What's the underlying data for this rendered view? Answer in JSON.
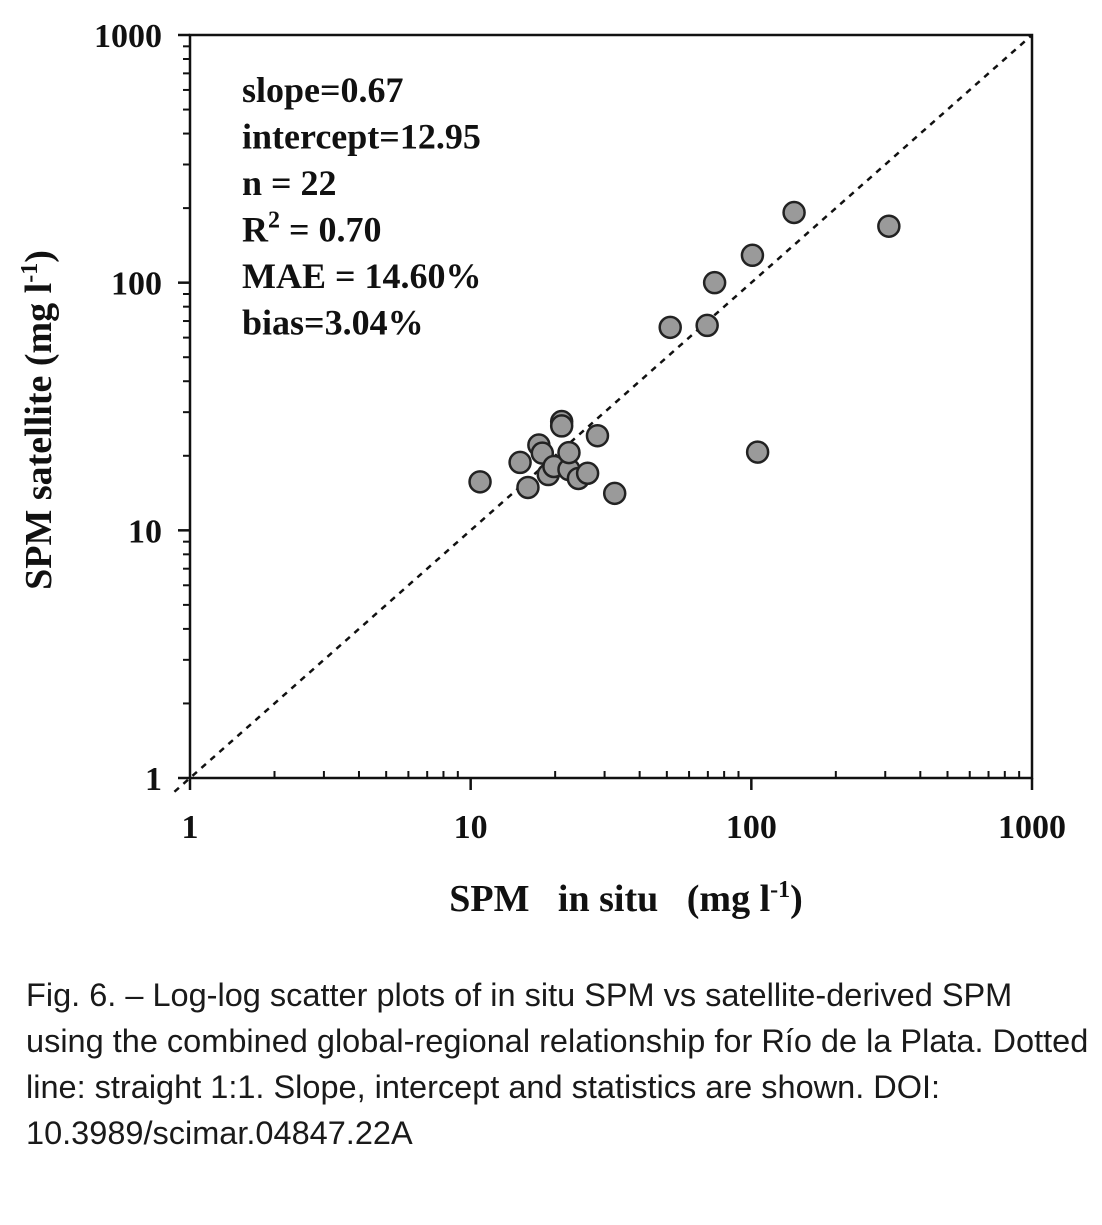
{
  "chart_data": {
    "type": "scatter",
    "xscale": "log",
    "yscale": "log",
    "xlim": [
      1,
      1000
    ],
    "ylim": [
      1,
      1000
    ],
    "x_ticks": [
      "1",
      "10",
      "100",
      "1000"
    ],
    "y_ticks": [
      "1",
      "10",
      "100",
      "1000"
    ],
    "xlabel": {
      "main": "SPM   in situ   (mg l",
      "sup": "-1",
      "end": ")"
    },
    "ylabel": {
      "main": "SPM satellite (mg l",
      "sup": "-1",
      "end": ")"
    },
    "reference_line": "1:1",
    "marker_color": "#9a9a9a",
    "stats": [
      {
        "label": "slope",
        "eq": "=",
        "value": "0.67"
      },
      {
        "label": "intercept",
        "eq": "=",
        "value": "12.95"
      },
      {
        "label": "n",
        "eq": " = ",
        "value": "22"
      },
      {
        "label": "R",
        "sup": "2",
        "eq": " = ",
        "value": "0.70"
      },
      {
        "label": "MAE",
        "eq": " = ",
        "value": "14.60%"
      },
      {
        "label": "bias",
        "eq": "=",
        "value": "3.04%"
      }
    ],
    "points": [
      {
        "x": 10.8,
        "y": 15.7
      },
      {
        "x": 15.0,
        "y": 18.8
      },
      {
        "x": 16.0,
        "y": 14.9
      },
      {
        "x": 17.5,
        "y": 22.1
      },
      {
        "x": 18.0,
        "y": 20.5
      },
      {
        "x": 18.9,
        "y": 16.8
      },
      {
        "x": 19.8,
        "y": 18.1
      },
      {
        "x": 21.1,
        "y": 27.5
      },
      {
        "x": 21.1,
        "y": 26.4
      },
      {
        "x": 22.4,
        "y": 17.6
      },
      {
        "x": 22.4,
        "y": 20.6
      },
      {
        "x": 24.2,
        "y": 16.2
      },
      {
        "x": 26.1,
        "y": 17.0
      },
      {
        "x": 28.3,
        "y": 24.1
      },
      {
        "x": 32.6,
        "y": 14.1
      },
      {
        "x": 51.4,
        "y": 66.0
      },
      {
        "x": 69.6,
        "y": 67.2
      },
      {
        "x": 74.0,
        "y": 100.0
      },
      {
        "x": 100.9,
        "y": 129.0
      },
      {
        "x": 105.3,
        "y": 20.7
      },
      {
        "x": 142.0,
        "y": 192.0
      },
      {
        "x": 309.0,
        "y": 169.0
      }
    ]
  },
  "caption": "Fig. 6. – Log-log scatter plots of in situ SPM vs satellite-derived SPM using the combined global-regional relationship for Río de la Plata. Dotted line: straight 1:1. Slope, intercept and statistics are shown. DOI: 10.3989/scimar.04847.22A"
}
